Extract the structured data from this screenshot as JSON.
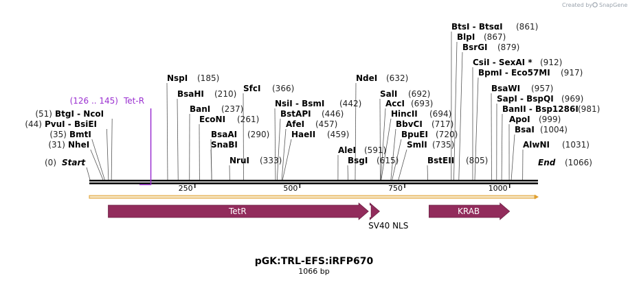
{
  "credit": {
    "text": "Created by",
    "brand": "SnapGene"
  },
  "title": "pGK:TRL-EFS:iRFP670",
  "subtitle": "1066 bp",
  "sequence_length": 1066,
  "scale": {
    "ticks": [
      250,
      500,
      750,
      1000
    ]
  },
  "endpoints": [
    {
      "name": "Start",
      "pos": 0,
      "side": "left"
    },
    {
      "name": "End",
      "pos": 1066,
      "side": "right"
    }
  ],
  "primer": {
    "name": "Tet-R",
    "range": "(126 .. 145)",
    "start": 126,
    "end": 145
  },
  "features": [
    {
      "name": "TetR",
      "start": 50,
      "end": 670,
      "color": "#922c5c",
      "label_inside": true
    },
    {
      "name": "SV40 NLS",
      "start": 670,
      "end": 690,
      "color": "#922c5c",
      "label_inside": false
    },
    {
      "name": "KRAB",
      "start": 808,
      "end": 1000,
      "color": "#922c5c",
      "label_inside": true
    }
  ],
  "enzymes": [
    {
      "name": "NheI",
      "pos": 31,
      "side": "left"
    },
    {
      "name": "BmtI",
      "pos": 35,
      "side": "left"
    },
    {
      "name": "PvuI - BsiEI",
      "pos": 44,
      "side": "left"
    },
    {
      "name": "BtgI - NcoI",
      "pos": 51,
      "side": "left"
    },
    {
      "name": "NspI",
      "pos": 185,
      "side": "right"
    },
    {
      "name": "BsaHI",
      "pos": 210,
      "side": "right"
    },
    {
      "name": "BanI",
      "pos": 237,
      "side": "right"
    },
    {
      "name": "EcoNI",
      "pos": 261,
      "side": "right"
    },
    {
      "name": "BsaAI",
      "pos": 290,
      "side": "right"
    },
    {
      "name": "SnaBI",
      "pos": 290,
      "side": "right",
      "no_number": true
    },
    {
      "name": "NruI",
      "pos": 333,
      "side": "right"
    },
    {
      "name": "SfcI",
      "pos": 366,
      "side": "right"
    },
    {
      "name": "NsiI - BsmI",
      "pos": 442,
      "side": "right"
    },
    {
      "name": "BstAPI",
      "pos": 446,
      "side": "right"
    },
    {
      "name": "AfeI",
      "pos": 457,
      "side": "right"
    },
    {
      "name": "HaeII",
      "pos": 459,
      "side": "right"
    },
    {
      "name": "AleI",
      "pos": 591,
      "side": "right"
    },
    {
      "name": "BsgI",
      "pos": 615,
      "side": "right"
    },
    {
      "name": "NdeI",
      "pos": 632,
      "side": "right"
    },
    {
      "name": "SalI",
      "pos": 692,
      "side": "right"
    },
    {
      "name": "AccI",
      "pos": 693,
      "side": "right"
    },
    {
      "name": "HincII",
      "pos": 694,
      "side": "right"
    },
    {
      "name": "BbvCI",
      "pos": 717,
      "side": "right"
    },
    {
      "name": "BpuEI",
      "pos": 720,
      "side": "right"
    },
    {
      "name": "SmlI",
      "pos": 735,
      "side": "right"
    },
    {
      "name": "BstEII",
      "pos": 805,
      "side": "right"
    },
    {
      "name": "BtsI - BtsαI",
      "pos": 861,
      "side": "right"
    },
    {
      "name": "BlpI",
      "pos": 867,
      "side": "right"
    },
    {
      "name": "BsrGI",
      "pos": 879,
      "side": "right"
    },
    {
      "name": "CsiI - SexAI *",
      "pos": 912,
      "side": "right"
    },
    {
      "name": "BpmI - Eco57MI",
      "pos": 917,
      "side": "right"
    },
    {
      "name": "BsaWI",
      "pos": 957,
      "side": "right"
    },
    {
      "name": "SapI - BspQI",
      "pos": 969,
      "side": "right"
    },
    {
      "name": "BanII - Bsp1286I",
      "pos": 981,
      "side": "right"
    },
    {
      "name": "ApoI",
      "pos": 999,
      "side": "right"
    },
    {
      "name": "BsaI",
      "pos": 1004,
      "side": "right"
    },
    {
      "name": "AlwNI",
      "pos": 1031,
      "side": "right"
    }
  ],
  "colors": {
    "backbone": "#000000",
    "feature": "#922c5c",
    "primer": "#9a2fd0",
    "bar_fill": "#f5e6c4",
    "bar_edge": "#e0a030",
    "credit": "#9aa3ad"
  }
}
